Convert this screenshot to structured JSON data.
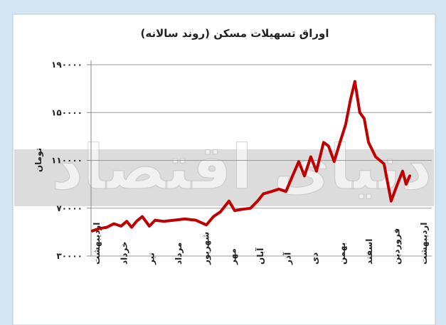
{
  "chart_data": {
    "type": "line",
    "title": "اوراق تسهیلات مسکن (روند سالانه)",
    "y_label": "تومان",
    "watermark": "دنیای اقتصاد",
    "x": [
      -0.16,
      0.1,
      0.37,
      0.63,
      0.89,
      1.1,
      1.28,
      1.46,
      1.67,
      1.93,
      2.14,
      2.45,
      2.84,
      3.23,
      3.63,
      4.02,
      4.28,
      4.54,
      4.85,
      5.06,
      5.32,
      5.64,
      5.9,
      6.11,
      6.42,
      6.68,
      6.94,
      7.2,
      7.41,
      7.62,
      7.85,
      8.06,
      8.32,
      8.5,
      8.71,
      8.92,
      9.13,
      9.31,
      9.47,
      9.65,
      9.81,
      9.97,
      10.23,
      10.54,
      10.8,
      11.01,
      11.22,
      11.35,
      11.48
    ],
    "series": [
      {
        "color": "#c00000",
        "values": [
          51000,
          53000,
          54000,
          57000,
          55000,
          59000,
          54000,
          59000,
          63000,
          55000,
          60000,
          59000,
          60000,
          61000,
          60000,
          56000,
          63000,
          67000,
          76000,
          68000,
          69000,
          70000,
          76000,
          82000,
          84000,
          86000,
          84000,
          98000,
          109000,
          97000,
          113000,
          101000,
          125000,
          122000,
          109000,
          125000,
          140000,
          161000,
          176000,
          150000,
          145000,
          125000,
          113000,
          107000,
          76000,
          89000,
          101000,
          90000,
          97000
        ]
      }
    ],
    "xlim": [
      -0.21,
      12.29
    ],
    "xticks": [
      {
        "value": 0,
        "label": "اردیبهشت"
      },
      {
        "value": 1,
        "label": "خرداد"
      },
      {
        "value": 2,
        "label": "تیر"
      },
      {
        "value": 3,
        "label": "مرداد"
      },
      {
        "value": 4,
        "label": "شهریور"
      },
      {
        "value": 5,
        "label": "مهر"
      },
      {
        "value": 6,
        "label": "آبان"
      },
      {
        "value": 7,
        "label": "آذر"
      },
      {
        "value": 8,
        "label": "دی"
      },
      {
        "value": 9,
        "label": "بهمن"
      },
      {
        "value": 10,
        "label": "اسفند"
      },
      {
        "value": 11,
        "label": "فروردین"
      },
      {
        "value": 12,
        "label": "اردیبهشت"
      }
    ],
    "ylim": [
      30000,
      190000
    ],
    "yticks": [
      {
        "value": 30000,
        "label": "۳۰۰۰۰"
      },
      {
        "value": 70000,
        "label": "۷۰۰۰۰"
      },
      {
        "value": 110000,
        "label": "۱۱۰۰۰۰"
      },
      {
        "value": 150000,
        "label": "۱۵۰۰۰۰"
      },
      {
        "value": 190000,
        "label": "۱۹۰۰۰۰"
      }
    ],
    "grid": true
  }
}
